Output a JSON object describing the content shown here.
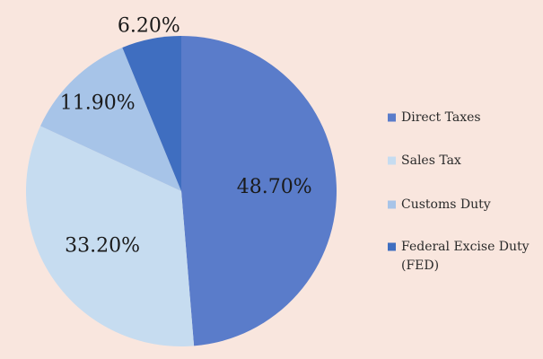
{
  "chart_data": {
    "type": "pie",
    "title": "",
    "categories": [
      "Direct Taxes",
      "Sales Tax",
      "Customs Duty",
      "Federal Excise Duty (FED)"
    ],
    "values": [
      48.7,
      33.2,
      11.9,
      6.2
    ],
    "data_labels": [
      "48.70%",
      "33.20%",
      "11.90%",
      "6.20%"
    ],
    "legend": {
      "placement": "right",
      "entries": [
        {
          "lines": [
            "Direct Taxes"
          ]
        },
        {
          "lines": [
            "Sales Tax"
          ]
        },
        {
          "lines": [
            "Customs Duty"
          ]
        },
        {
          "lines": [
            "Federal Excise Duty",
            "(FED)"
          ]
        }
      ]
    },
    "colors": [
      "#5a7cca",
      "#c6dcf0",
      "#a7c4e8",
      "#3f6ec0"
    ],
    "start_angle_deg": 0,
    "direction": "clockwise"
  },
  "colors": {
    "background": "#f9e6de"
  }
}
